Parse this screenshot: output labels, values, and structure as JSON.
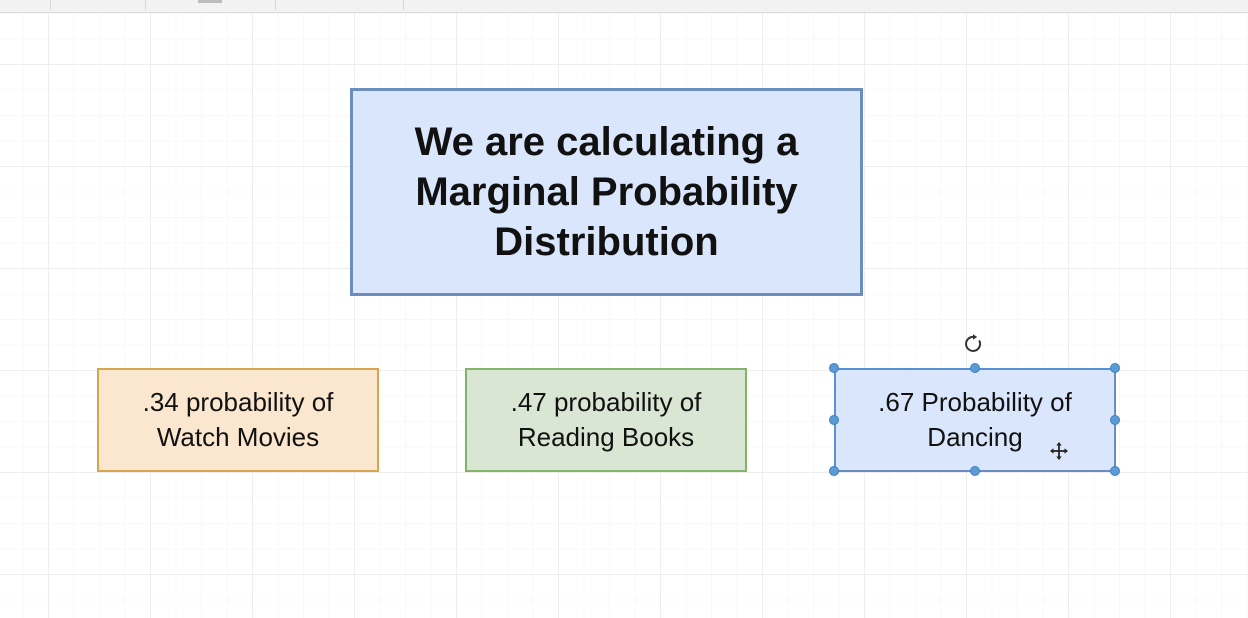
{
  "diagram": {
    "title_box": {
      "text": "We are calculating a Marginal Probability Distribution"
    },
    "boxes": [
      {
        "text": ".34 probability of Watch Movies"
      },
      {
        "text": ".47 probability of Reading Books"
      },
      {
        "text": ".67 Probability of Dancing"
      }
    ],
    "selected_box_index": 2
  },
  "icons": {
    "rotate": "rotate-icon",
    "move": "move-cursor-icon"
  },
  "colors": {
    "title_fill": "#dae6fb",
    "title_stroke": "#6c8ebf",
    "movies_fill": "#fbe6cf",
    "movies_stroke": "#d6a64f",
    "books_fill": "#d8e6d3",
    "books_stroke": "#82b366",
    "dancing_fill": "#dae6fb",
    "dancing_stroke": "#6c8ebf",
    "selection": "#5b9bd5"
  }
}
